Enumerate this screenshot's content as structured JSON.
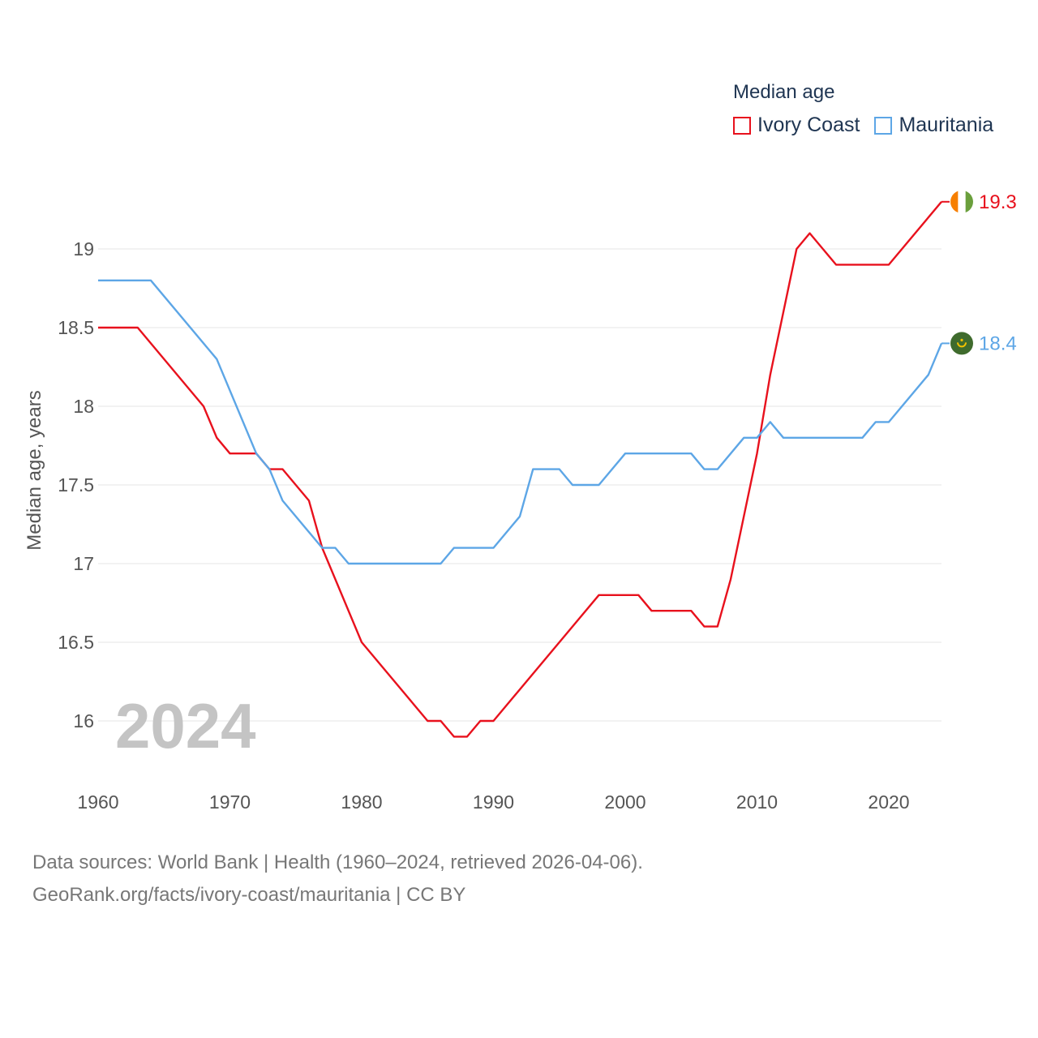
{
  "chart_data": {
    "type": "line",
    "title": "Median age",
    "ylabel": "Median age, years",
    "xlabel": "",
    "xlim": [
      1960,
      2024
    ],
    "ylim": [
      15.6,
      19.5
    ],
    "y_ticks": [
      16,
      16.5,
      17,
      17.5,
      18,
      18.5,
      19
    ],
    "y_tick_labels": [
      "16",
      "16.5",
      "17",
      "17.5",
      "18",
      "18.5",
      "19"
    ],
    "x_ticks": [
      1960,
      1970,
      1980,
      1990,
      2000,
      2010,
      2020
    ],
    "x_tick_labels": [
      "1960",
      "1970",
      "1980",
      "1990",
      "2000",
      "2010",
      "2020"
    ],
    "grid": true,
    "legend_position": "top-right",
    "watermark_year": "2024",
    "series": [
      {
        "name": "Ivory Coast",
        "color": "#e8111d",
        "end_label": "19.3",
        "flag": "ivory-coast-flag",
        "flag_colors": [
          "#f77f00",
          "#ffffff",
          "#6a9f3c"
        ],
        "points": [
          [
            1960,
            18.5
          ],
          [
            1963,
            18.5
          ],
          [
            1968,
            18.0
          ],
          [
            1969,
            17.8
          ],
          [
            1970,
            17.7
          ],
          [
            1972,
            17.7
          ],
          [
            1973,
            17.6
          ],
          [
            1974,
            17.6
          ],
          [
            1976,
            17.4
          ],
          [
            1977,
            17.1
          ],
          [
            1980,
            16.5
          ],
          [
            1985,
            16.0
          ],
          [
            1986,
            16.0
          ],
          [
            1987,
            15.9
          ],
          [
            1988,
            15.9
          ],
          [
            1989,
            16.0
          ],
          [
            1990,
            16.0
          ],
          [
            1998,
            16.8
          ],
          [
            2001,
            16.8
          ],
          [
            2002,
            16.7
          ],
          [
            2005,
            16.7
          ],
          [
            2006,
            16.6
          ],
          [
            2007,
            16.6
          ],
          [
            2008,
            16.9
          ],
          [
            2010,
            17.7
          ],
          [
            2011,
            18.2
          ],
          [
            2013,
            19.0
          ],
          [
            2014,
            19.1
          ],
          [
            2016,
            18.9
          ],
          [
            2020,
            18.9
          ],
          [
            2024,
            19.3
          ]
        ]
      },
      {
        "name": "Mauritania",
        "color": "#5da6e6",
        "end_label": "18.4",
        "flag": "mauritania-flag",
        "flag_colors": [
          "#3f6b2d",
          "#f2c200"
        ],
        "points": [
          [
            1960,
            18.8
          ],
          [
            1964,
            18.8
          ],
          [
            1969,
            18.3
          ],
          [
            1972,
            17.7
          ],
          [
            1973,
            17.6
          ],
          [
            1974,
            17.4
          ],
          [
            1977,
            17.1
          ],
          [
            1978,
            17.1
          ],
          [
            1979,
            17.0
          ],
          [
            1986,
            17.0
          ],
          [
            1987,
            17.1
          ],
          [
            1990,
            17.1
          ],
          [
            1992,
            17.3
          ],
          [
            1993,
            17.6
          ],
          [
            1995,
            17.6
          ],
          [
            1996,
            17.5
          ],
          [
            1998,
            17.5
          ],
          [
            2000,
            17.7
          ],
          [
            2005,
            17.7
          ],
          [
            2006,
            17.6
          ],
          [
            2007,
            17.6
          ],
          [
            2009,
            17.8
          ],
          [
            2010,
            17.8
          ],
          [
            2011,
            17.9
          ],
          [
            2012,
            17.8
          ],
          [
            2018,
            17.8
          ],
          [
            2019,
            17.9
          ],
          [
            2020,
            17.9
          ],
          [
            2023,
            18.2
          ],
          [
            2024,
            18.4
          ]
        ]
      }
    ]
  },
  "legend": {
    "title": "Median age",
    "items": [
      {
        "label": "Ivory Coast",
        "color": "#e8111d"
      },
      {
        "label": "Mauritania",
        "color": "#5da6e6"
      }
    ]
  },
  "source": {
    "line1": "Data sources: World Bank | Health (1960–2024, retrieved 2026-04-06).",
    "line2": "GeoRank.org/facts/ivory-coast/mauritania | CC BY"
  }
}
